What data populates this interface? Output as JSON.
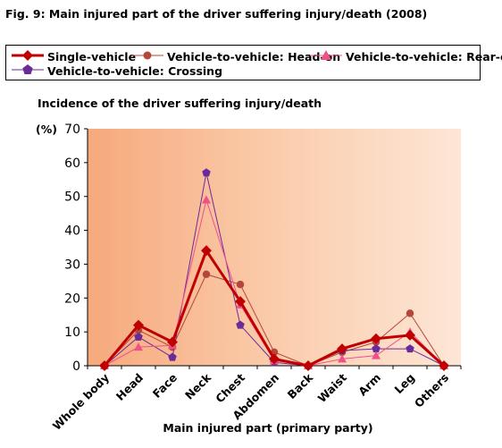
{
  "figure_title": "Fig. 9: Main injured part of the driver suffering injury/death (2008)",
  "chart_data": {
    "type": "line",
    "title": "Incidence of the driver suffering injury/death",
    "xlabel": "Main injured part (primary party)",
    "ylabel": "(%)",
    "ylim": [
      0,
      70
    ],
    "yticks": [
      0,
      10,
      20,
      30,
      40,
      50,
      60,
      70
    ],
    "grid": false,
    "legend_position": "top",
    "categories": [
      "Whole body",
      "Head",
      "Face",
      "Neck",
      "Chest",
      "Abdomen",
      "Back",
      "Waist",
      "Arm",
      "Leg",
      "Others"
    ],
    "series": [
      {
        "name": "Single-vehicle",
        "color": "#c00000",
        "marker": "diamond",
        "values": [
          0,
          12,
          7,
          34,
          19,
          2,
          0,
          5,
          8,
          9,
          0
        ]
      },
      {
        "name": "Vehicle-to-vehicle: Head-on",
        "color": "#b5473a",
        "marker": "circle",
        "values": [
          0,
          10.5,
          5.5,
          27,
          24,
          4,
          0,
          4,
          7,
          15.5,
          0
        ]
      },
      {
        "name": "Vehicle-to-vehicle: Rear-end",
        "color": "#f0508a",
        "marker": "triangle",
        "values": [
          0,
          5.5,
          6,
          49,
          18,
          1.5,
          0,
          2,
          3,
          10,
          0
        ]
      },
      {
        "name": "Vehicle-to-vehicle: Crossing",
        "color": "#6a2a9a",
        "marker": "pentagon",
        "values": [
          0,
          8.5,
          2.5,
          57,
          12,
          1,
          0,
          4.5,
          5,
          5,
          0
        ]
      }
    ]
  }
}
